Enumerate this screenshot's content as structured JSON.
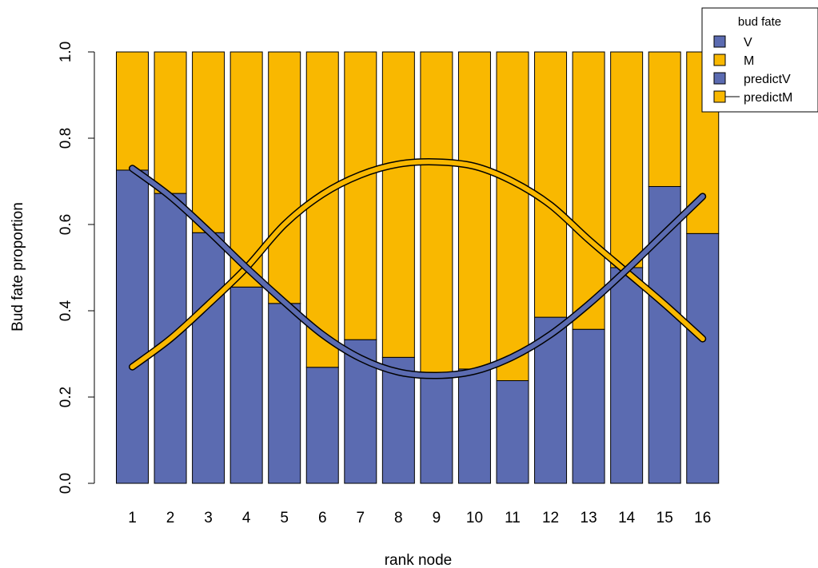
{
  "chart_data": {
    "type": "bar",
    "subtype": "stacked-proportion with overlaid fitted lines",
    "title": "",
    "xlabel": "rank node",
    "ylabel": "Bud fate proportion",
    "ylim": [
      0,
      1
    ],
    "yticks": [
      "0.0",
      "0.2",
      "0.4",
      "0.6",
      "0.8",
      "1.0"
    ],
    "categories": [
      "1",
      "2",
      "3",
      "4",
      "5",
      "6",
      "7",
      "8",
      "9",
      "10",
      "11",
      "12",
      "13",
      "14",
      "15",
      "16"
    ],
    "series": [
      {
        "name": "V",
        "kind": "bar",
        "color": "#5b6bb1",
        "values": [
          0.726,
          0.672,
          0.581,
          0.455,
          0.417,
          0.269,
          0.333,
          0.292,
          0.25,
          0.265,
          0.238,
          0.385,
          0.357,
          0.5,
          0.688,
          0.579
        ]
      },
      {
        "name": "M",
        "kind": "bar",
        "color": "#f9b800",
        "values": [
          0.274,
          0.328,
          0.419,
          0.545,
          0.583,
          0.731,
          0.667,
          0.708,
          0.75,
          0.735,
          0.762,
          0.615,
          0.643,
          0.5,
          0.312,
          0.421
        ]
      },
      {
        "name": "predictV",
        "kind": "line",
        "color": "#5b6bb1",
        "values": [
          0.73,
          0.665,
          0.585,
          0.5,
          0.42,
          0.345,
          0.29,
          0.258,
          0.25,
          0.26,
          0.293,
          0.345,
          0.415,
          0.495,
          0.58,
          0.665
        ]
      },
      {
        "name": "predictM",
        "kind": "line",
        "color": "#f9b800",
        "values": [
          0.27,
          0.335,
          0.415,
          0.5,
          0.6,
          0.67,
          0.715,
          0.74,
          0.745,
          0.735,
          0.7,
          0.645,
          0.565,
          0.49,
          0.415,
          0.335
        ]
      }
    ],
    "legend": {
      "title": "bud fate",
      "placement": "top-right",
      "entries": [
        "V",
        "M",
        "predictV",
        "predictM"
      ]
    },
    "grid": false
  }
}
